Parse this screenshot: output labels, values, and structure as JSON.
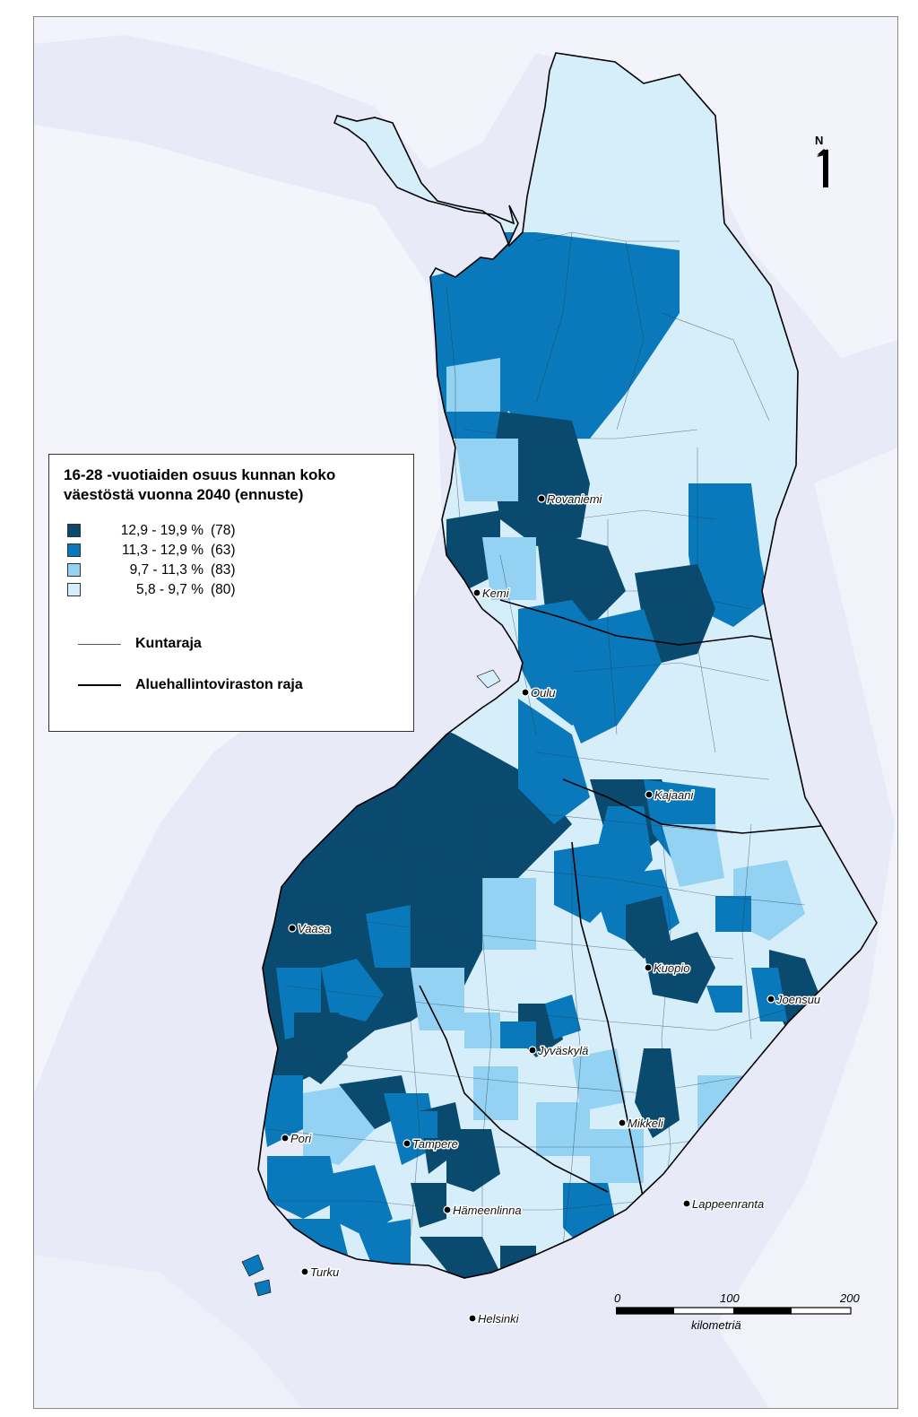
{
  "legend": {
    "title_line1": "16-28 -vuotiaiden osuus kunnan koko",
    "title_line2": "väestöstä vuonna 2040 (ennuste)",
    "classes": [
      {
        "range": "12,9 - 19,9 %",
        "count": "(78)",
        "color": "#0b4a6f"
      },
      {
        "range": "11,3 - 12,9 %",
        "count": "(63)",
        "color": "#0979bb"
      },
      {
        "range": "9,7 - 11,3 %",
        "count": "(83)",
        "color": "#93d2f2"
      },
      {
        "range": "5,8 - 9,7 %",
        "count": "(80)",
        "color": "#d5eefa"
      }
    ],
    "line_municipal": "Kuntaraja",
    "line_region": "Aluehallintoviraston raja"
  },
  "north": {
    "letter": "N"
  },
  "scale": {
    "tick_0": "0",
    "tick_100": "100",
    "tick_200": "200",
    "unit": "kilometriä"
  },
  "cities": [
    {
      "name": "Rovaniemi"
    },
    {
      "name": "Kemi"
    },
    {
      "name": "Oulu"
    },
    {
      "name": "Kajaani"
    },
    {
      "name": "Vaasa"
    },
    {
      "name": "Kuopio"
    },
    {
      "name": "Joensuu"
    },
    {
      "name": "Jyväskylä"
    },
    {
      "name": "Mikkeli"
    },
    {
      "name": "Pori"
    },
    {
      "name": "Tampere"
    },
    {
      "name": "Lappeenranta"
    },
    {
      "name": "Hämeenlinna"
    },
    {
      "name": "Turku"
    },
    {
      "name": "Helsinki"
    }
  ],
  "colors": {
    "sea": "#e9ebf7",
    "class_1": "#0b4a6f",
    "class_2": "#0979bb",
    "class_3": "#93d2f2",
    "class_4": "#d5eefa"
  }
}
